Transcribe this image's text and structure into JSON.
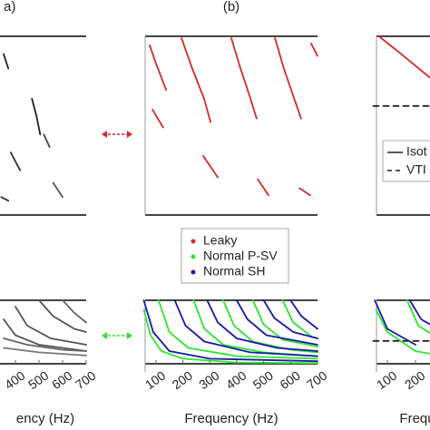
{
  "chart_data": [
    {
      "type": "line",
      "title": "a)",
      "xlabel": "ency (Hz)",
      "xlim": [
        50,
        700
      ],
      "xticks": [
        400,
        500,
        600,
        700
      ],
      "top": {
        "series": [
          {
            "color": "#222222",
            "x": [
              350,
              370
            ],
            "values": [
              0.9,
              0.82
            ]
          },
          {
            "color": "#222222",
            "x": [
              470,
              490,
              505
            ],
            "values": [
              0.65,
              0.55,
              0.45
            ]
          },
          {
            "color": "#444444",
            "x": [
              520,
              545
            ],
            "values": [
              0.45,
              0.38
            ]
          },
          {
            "color": "#333333",
            "x": [
              380,
              420
            ],
            "values": [
              0.35,
              0.25
            ]
          },
          {
            "color": "#555555",
            "x": [
              560,
              600
            ],
            "values": [
              0.18,
              0.1
            ]
          },
          {
            "color": "#333333",
            "x": [
              340,
              370
            ],
            "values": [
              0.1,
              0.08
            ]
          }
        ]
      },
      "bottom": {
        "series": [
          {
            "color": "#555555",
            "x": [
              400,
              450,
              550,
              700
            ],
            "values": [
              0.9,
              0.6,
              0.4,
              0.3
            ]
          },
          {
            "color": "#555555",
            "x": [
              350,
              400,
              500,
              700
            ],
            "values": [
              0.7,
              0.45,
              0.3,
              0.2
            ]
          },
          {
            "color": "#666666",
            "x": [
              350,
              450,
              600,
              700
            ],
            "values": [
              0.4,
              0.3,
              0.22,
              0.2
            ]
          },
          {
            "color": "#777777",
            "x": [
              350,
              500,
              700
            ],
            "values": [
              0.25,
              0.18,
              0.13
            ]
          },
          {
            "color": "#555555",
            "x": [
              500,
              560,
              650,
              700
            ],
            "values": [
              1,
              0.75,
              0.55,
              0.5
            ]
          },
          {
            "color": "#666666",
            "x": [
              600,
              650,
              700
            ],
            "values": [
              1,
              0.8,
              0.65
            ]
          }
        ]
      }
    },
    {
      "type": "line",
      "title": "(b)",
      "xlabel": "Frequency (Hz)",
      "xlim": [
        50,
        700
      ],
      "xticks": [
        100,
        200,
        300,
        400,
        500,
        600,
        700
      ],
      "legend": [
        {
          "name": "Leaky",
          "color": "#d42a2a"
        },
        {
          "name": "Normal P-SV",
          "color": "#2ee62e"
        },
        {
          "name": "Normal SH",
          "color": "#1a1aa8"
        }
      ],
      "top": {
        "series": [
          {
            "color": "#d42a2a",
            "x": [
              77,
              100,
              138
            ],
            "values": [
              0.95,
              0.85,
              0.7
            ]
          },
          {
            "color": "#d42a2a",
            "x": [
              195,
              235,
              279,
              303
            ],
            "values": [
              0.99,
              0.82,
              0.65,
              0.52
            ]
          },
          {
            "color": "#d42a2a",
            "x": [
              380,
              414,
              447,
              474
            ],
            "values": [
              0.99,
              0.82,
              0.67,
              0.54
            ]
          },
          {
            "color": "#d42a2a",
            "x": [
              542,
              575,
              609,
              639
            ],
            "values": [
              0.99,
              0.82,
              0.67,
              0.54
            ]
          },
          {
            "color": "#d42a2a",
            "x": [
              676,
              700
            ],
            "values": [
              0.96,
              0.89
            ]
          },
          {
            "color": "#d42a2a",
            "x": [
              87,
              127
            ],
            "values": [
              0.59,
              0.49
            ]
          },
          {
            "color": "#d42a2a",
            "x": [
              276,
              330
            ],
            "values": [
              0.33,
              0.21
            ]
          },
          {
            "color": "#d42a2a",
            "x": [
              478,
              518
            ],
            "values": [
              0.2,
              0.11
            ]
          },
          {
            "color": "#d42a2a",
            "x": [
              633,
              673
            ],
            "values": [
              0.15,
              0.11
            ]
          }
        ]
      },
      "bottom": {
        "series": [
          {
            "color": "#2ee62e",
            "x": [
              55,
              80,
              120,
              200,
              400,
              700
            ],
            "values": [
              0.85,
              0.45,
              0.2,
              0.08,
              0.02,
              0.01
            ]
          },
          {
            "color": "#2ee62e",
            "x": [
              110,
              150,
              220,
              400,
              700
            ],
            "values": [
              1,
              0.5,
              0.25,
              0.12,
              0.08
            ]
          },
          {
            "color": "#2ee62e",
            "x": [
              240,
              280,
              350,
              500,
              700
            ],
            "values": [
              1,
              0.55,
              0.3,
              0.18,
              0.12
            ]
          },
          {
            "color": "#2ee62e",
            "x": [
              350,
              390,
              460,
              600,
              700
            ],
            "values": [
              1,
              0.6,
              0.35,
              0.22,
              0.18
            ]
          },
          {
            "color": "#2ee62e",
            "x": [
              460,
              500,
              570,
              700
            ],
            "values": [
              1,
              0.62,
              0.38,
              0.27
            ]
          },
          {
            "color": "#2ee62e",
            "x": [
              570,
              610,
              680,
              700
            ],
            "values": [
              1,
              0.65,
              0.42,
              0.4
            ]
          },
          {
            "color": "#1a1aa8",
            "x": [
              55,
              90,
              150,
              300,
              700
            ],
            "values": [
              1,
              0.5,
              0.2,
              0.08,
              0.04
            ]
          },
          {
            "color": "#1a1aa8",
            "x": [
              170,
              210,
              280,
              450,
              700
            ],
            "values": [
              1,
              0.6,
              0.35,
              0.18,
              0.12
            ]
          },
          {
            "color": "#1a1aa8",
            "x": [
              290,
              330,
              400,
              550,
              700
            ],
            "values": [
              1,
              0.65,
              0.4,
              0.25,
              0.2
            ]
          },
          {
            "color": "#1a1aa8",
            "x": [
              400,
              440,
              510,
              700
            ],
            "values": [
              1,
              0.7,
              0.45,
              0.3
            ]
          },
          {
            "color": "#1a1aa8",
            "x": [
              500,
              540,
              610,
              700
            ],
            "values": [
              1,
              0.72,
              0.5,
              0.4
            ]
          },
          {
            "color": "#1a1aa8",
            "x": [
              600,
              640,
              700
            ],
            "values": [
              1,
              0.75,
              0.55
            ]
          }
        ]
      }
    },
    {
      "type": "line",
      "xlabel": "Frequ",
      "xlim": [
        50,
        700
      ],
      "xticks": [
        100,
        200
      ],
      "legend": [
        {
          "name": "Isot",
          "dashed": false
        },
        {
          "name": "VTI",
          "dashed": true
        }
      ],
      "top": {
        "series": [
          {
            "color": "#d42a2a",
            "x": [
              70,
              150,
              250
            ],
            "values": [
              1,
              0.9,
              0.77
            ]
          },
          {
            "color": "#222222",
            "dashed": true,
            "x": [
              50,
              700
            ],
            "values": [
              0.61,
              0.61
            ]
          }
        ]
      },
      "bottom": {
        "series": [
          {
            "color": "#2ee62e",
            "x": [
              60,
              100,
              200,
              300
            ],
            "values": [
              0.85,
              0.5,
              0.2,
              0.12
            ]
          },
          {
            "color": "#1a1aa8",
            "x": [
              55,
              100,
              200
            ],
            "values": [
              1,
              0.55,
              0.3
            ]
          },
          {
            "color": "#2ee62e",
            "x": [
              170,
              210,
              300
            ],
            "values": [
              1,
              0.6,
              0.35
            ]
          },
          {
            "color": "#1a1aa8",
            "x": [
              180,
              220,
              300
            ],
            "values": [
              1,
              0.7,
              0.5
            ]
          },
          {
            "color": "#222222",
            "dashed": true,
            "x": [
              50,
              700
            ],
            "values": [
              0.36,
              0.36
            ]
          }
        ]
      }
    }
  ]
}
